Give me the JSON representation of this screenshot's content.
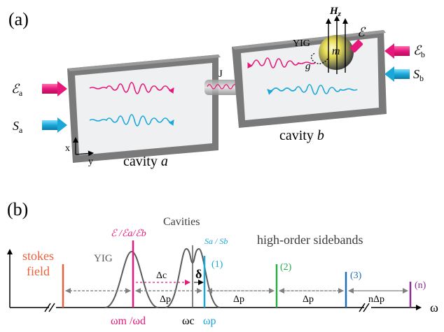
{
  "panel_a": {
    "label": "(a)",
    "cavity_a_label": "cavity",
    "cavity_a_var": "a",
    "cavity_b_label": "cavity",
    "cavity_b_var": "b",
    "coupling_label": "J",
    "yig_label": "YIG",
    "magnon_label": "m",
    "drive_label": "ℰ",
    "field_label": "H",
    "field_sub": "z",
    "coupling_g_label": "g",
    "Ea_label": "ℰ",
    "Ea_sub": "a",
    "Sa_label": "S",
    "Sa_sub": "a",
    "Eb_label": "ℰ",
    "Eb_sub": "b",
    "Sb_label": "S",
    "Sb_sub": "b",
    "axis_x": "x",
    "axis_y": "y"
  },
  "panel_b": {
    "label": "(b)",
    "stokes_label_1": "stokes",
    "stokes_label_2": "field",
    "yig_label": "YIG",
    "drive_label": "ℰ /ℰa/ℰb",
    "cavities_label": "Cavities",
    "probe_label": "Sa / Sb",
    "high_order_label": "high-order sidebands",
    "sideband_1": "(1)",
    "sideband_2": "(2)",
    "sideband_3": "(3)",
    "sideband_n": "(n)",
    "delta_c": "Δc",
    "delta_p_1": "Δp",
    "delta_p_2": "Δp",
    "delta_p_3": "Δp",
    "n_delta_p": "nΔp",
    "delta_small": "δ",
    "omega_axis": "ω",
    "omega_m_d": "ωm /ωd",
    "omega_c": "ωc",
    "omega_p": "ωp"
  },
  "colors": {
    "drive": "#e6197a",
    "probe": "#1ba8d8",
    "stokes": "#e8603c",
    "sideband2": "#2aaa4a",
    "sideband3": "#1d6fb8",
    "sidebandn": "#8a2b8f",
    "frame": "#6e6e6e",
    "inner": "#eceef0"
  }
}
